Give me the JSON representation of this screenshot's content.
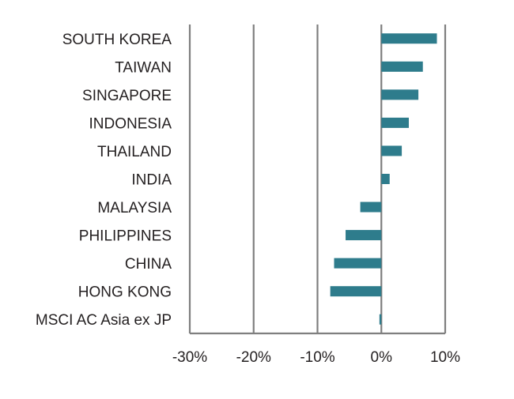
{
  "chart_data": {
    "type": "bar",
    "orientation": "horizontal",
    "title": "",
    "xlabel": "",
    "ylabel": "",
    "categories": [
      "SOUTH KOREA",
      "TAIWAN",
      "SINGAPORE",
      "INDONESIA",
      "THAILAND",
      "INDIA",
      "MALAYSIA",
      "PHILIPPINES",
      "CHINA",
      "HONG KONG",
      "MSCI AC Asia ex JP"
    ],
    "values": [
      8.7,
      6.5,
      5.8,
      4.3,
      3.2,
      1.3,
      -3.3,
      -5.6,
      -7.4,
      -8.0,
      -0.3
    ],
    "xlim": [
      -30,
      10
    ],
    "x_ticks": [
      -30,
      -20,
      -10,
      0,
      10
    ],
    "x_tick_labels": [
      "-30%",
      "-20%",
      "-10%",
      "0%",
      "10%"
    ],
    "grid": "vertical",
    "legend": "none",
    "colors": {
      "bar": "#2e7c8c",
      "grid": "#7f7f7f",
      "text": "#231f20"
    }
  }
}
